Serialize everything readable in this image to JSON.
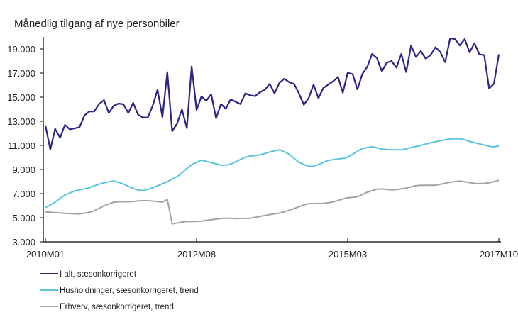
{
  "chart_data": {
    "type": "line",
    "title": "Månedlig tilgang af nye personbiler",
    "xlabel": "",
    "ylabel": "",
    "ylim": [
      3000,
      20000
    ],
    "yticks": [
      3000,
      5000,
      7000,
      9000,
      11000,
      13000,
      15000,
      17000,
      19000
    ],
    "ytick_labels": [
      "3.000",
      "5.000",
      "7.000",
      "9.000",
      "11.000",
      "13.000",
      "15.000",
      "17.000",
      "19.000"
    ],
    "x_start": "2010M01",
    "x_end": "2017M10",
    "xticks": [
      {
        "index": 0,
        "label": "2010M01"
      },
      {
        "index": 31,
        "label": "2012M08"
      },
      {
        "index": 62,
        "label": "2015M03"
      },
      {
        "index": 93,
        "label": "2017M10"
      }
    ],
    "grid": false,
    "legend_position": "bottom-left",
    "series": [
      {
        "name": "I alt, sæsonkorrigeret",
        "color": "#2b2686",
        "values": [
          12660,
          10660,
          12370,
          11630,
          12700,
          12330,
          12420,
          12510,
          13480,
          13820,
          13820,
          14430,
          14760,
          13690,
          14290,
          14470,
          14410,
          13690,
          14530,
          13550,
          13310,
          13310,
          14300,
          15610,
          13350,
          17080,
          12180,
          12800,
          13990,
          12430,
          17550,
          13940,
          15060,
          14710,
          15250,
          13250,
          14430,
          14040,
          14820,
          14620,
          14430,
          15310,
          15160,
          15080,
          15410,
          15610,
          16100,
          15310,
          16190,
          16530,
          16240,
          16100,
          15310,
          14370,
          14920,
          16040,
          14920,
          15760,
          16040,
          16310,
          16680,
          15370,
          17020,
          16920,
          15650,
          16920,
          17510,
          18590,
          18250,
          17140,
          17860,
          18000,
          17450,
          18590,
          17080,
          19280,
          18330,
          18820,
          18200,
          18490,
          19140,
          18750,
          17900,
          19880,
          19820,
          19290,
          19820,
          18720,
          19470,
          18550,
          18490,
          15710,
          16120,
          18550
        ]
      },
      {
        "name": "Husholdninger, sæsonkorrigeret, trend",
        "color": "#5bc3df",
        "values": [
          5840,
          6060,
          6290,
          6600,
          6880,
          7050,
          7210,
          7310,
          7400,
          7490,
          7640,
          7780,
          7890,
          7980,
          8050,
          7940,
          7800,
          7610,
          7430,
          7300,
          7240,
          7360,
          7480,
          7650,
          7820,
          7990,
          8220,
          8400,
          8720,
          9080,
          9390,
          9600,
          9770,
          9680,
          9570,
          9470,
          9360,
          9360,
          9440,
          9640,
          9830,
          10030,
          10110,
          10160,
          10220,
          10330,
          10450,
          10550,
          10640,
          10470,
          10270,
          9920,
          9600,
          9420,
          9260,
          9280,
          9420,
          9590,
          9760,
          9820,
          9870,
          9920,
          10030,
          10260,
          10500,
          10740,
          10820,
          10890,
          10800,
          10700,
          10650,
          10630,
          10630,
          10630,
          10720,
          10820,
          10910,
          11000,
          11110,
          11210,
          11310,
          11390,
          11470,
          11540,
          11560,
          11550,
          11470,
          11330,
          11230,
          11130,
          11030,
          10930,
          10880,
          10950
        ]
      },
      {
        "name": "Erhverv, sæsonkorrigeret, trend",
        "color": "#a3a3a3",
        "values": [
          5490,
          5460,
          5430,
          5400,
          5370,
          5350,
          5330,
          5310,
          5380,
          5450,
          5570,
          5780,
          5990,
          6140,
          6290,
          6330,
          6330,
          6330,
          6340,
          6400,
          6420,
          6410,
          6380,
          6340,
          6300,
          6520,
          4490,
          4560,
          4640,
          4690,
          4690,
          4700,
          4720,
          4770,
          4830,
          4890,
          4940,
          4970,
          4960,
          4930,
          4940,
          4950,
          4960,
          5030,
          5110,
          5180,
          5260,
          5330,
          5380,
          5490,
          5630,
          5760,
          5910,
          6060,
          6170,
          6170,
          6180,
          6190,
          6240,
          6310,
          6430,
          6560,
          6650,
          6690,
          6740,
          6930,
          7120,
          7250,
          7370,
          7390,
          7350,
          7320,
          7330,
          7390,
          7460,
          7560,
          7660,
          7690,
          7690,
          7690,
          7700,
          7770,
          7860,
          7950,
          8000,
          8050,
          7980,
          7920,
          7850,
          7830,
          7850,
          7900,
          7990,
          8100
        ]
      }
    ],
    "legend": [
      {
        "label": "I alt, sæsonkorrigeret",
        "color": "#2b2686"
      },
      {
        "label": "Husholdninger, sæsonkorrigeret, trend",
        "color": "#5bc3df"
      },
      {
        "label": "Erhverv, sæsonkorrigeret, trend",
        "color": "#a3a3a3"
      }
    ]
  }
}
